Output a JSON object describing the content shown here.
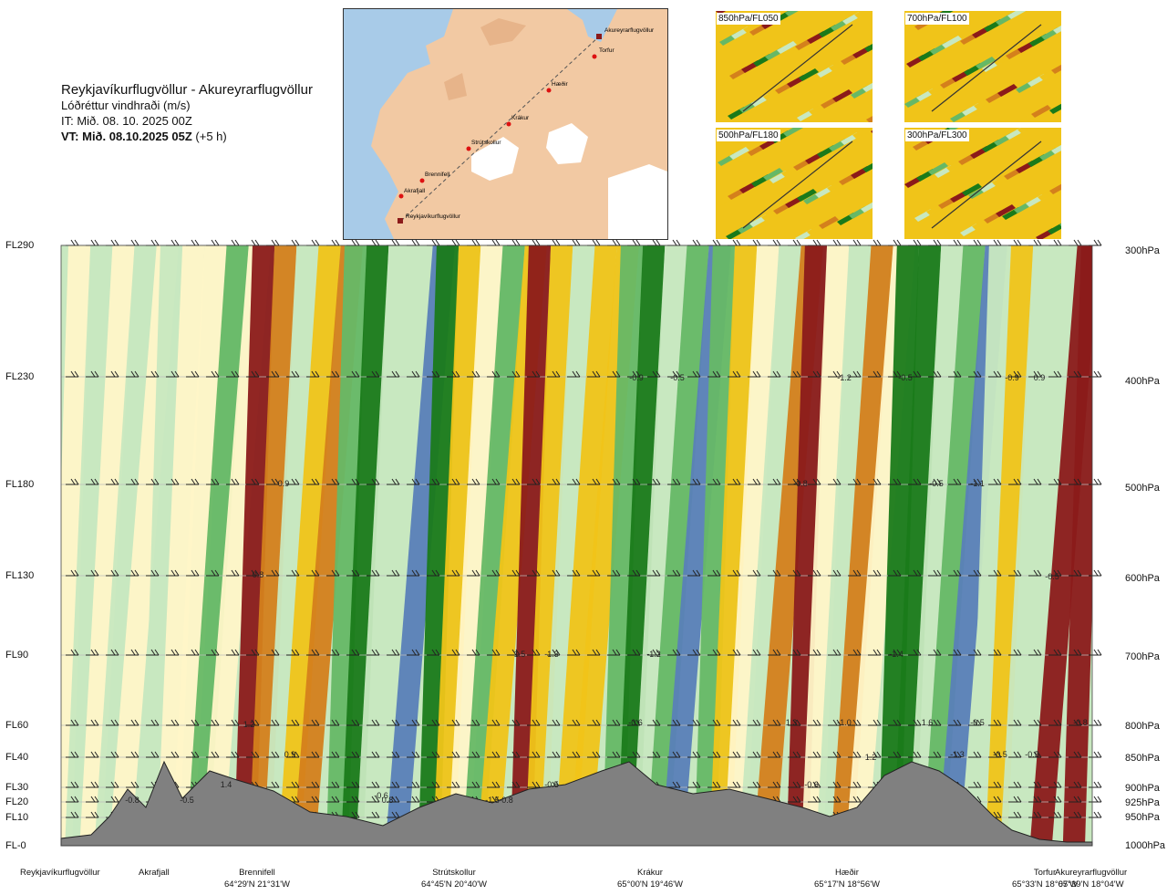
{
  "title": {
    "route": "Reykjavíkurflugvöllur - Akureyrarflugvöllur",
    "subtitle": "Lóðréttur vindhraði (m/s)",
    "issue_time": "IT: Mið. 08. 10. 2025 00Z",
    "valid_time": "VT: Mið. 08.10.2025 05Z",
    "lead": "(+5 h)"
  },
  "map": {
    "waypoints": [
      {
        "name": "Akureyrarflugvöllur",
        "kind": "airport"
      },
      {
        "name": "Torfur",
        "kind": "point"
      },
      {
        "name": "Hæðir",
        "kind": "point"
      },
      {
        "name": "Krákur",
        "kind": "point"
      },
      {
        "name": "Strútskollur",
        "kind": "point"
      },
      {
        "name": "Brennifell",
        "kind": "point"
      },
      {
        "name": "Akrafjall",
        "kind": "point"
      },
      {
        "name": "Reykjavíkurflugvöllur",
        "kind": "airport"
      }
    ],
    "colors": {
      "land": "#f2c9a3",
      "sea": "#a8cbe8",
      "glacier": "#ffffff",
      "route": "#555555",
      "point": "#dd1111",
      "airport": "#8b1a1a"
    }
  },
  "thumbnails": [
    {
      "label": "850hPa/FL050"
    },
    {
      "label": "700hPa/FL100"
    },
    {
      "label": "500hPa/FL180"
    },
    {
      "label": "300hPa/FL300"
    }
  ],
  "levels": [
    {
      "fl": "FL290",
      "hpa": "300hPa"
    },
    {
      "fl": "FL230",
      "hpa": "400hPa"
    },
    {
      "fl": "FL180",
      "hpa": "500hPa"
    },
    {
      "fl": "FL130",
      "hpa": "600hPa"
    },
    {
      "fl": "FL90",
      "hpa": "700hPa"
    },
    {
      "fl": "FL60",
      "hpa": "800hPa"
    },
    {
      "fl": "FL40",
      "hpa": "850hPa"
    },
    {
      "fl": "FL30",
      "hpa": "900hPa"
    },
    {
      "fl": "FL20",
      "hpa": "925hPa"
    },
    {
      "fl": "FL10",
      "hpa": "950hPa"
    },
    {
      "fl": "FL-0",
      "hpa": "1000hPa"
    }
  ],
  "locations": [
    {
      "name": "Reykjavíkurflugvöllur",
      "coord": ""
    },
    {
      "name": "Akrafjall",
      "coord": ""
    },
    {
      "name": "Brennifell",
      "coord": "64°29'N 21°31'W"
    },
    {
      "name": "Strútskollur",
      "coord": "64°45'N 20°40'W"
    },
    {
      "name": "Krákur",
      "coord": "65°00'N 19°46'W"
    },
    {
      "name": "Hæðir",
      "coord": "65°17'N 18°56'W"
    },
    {
      "name": "Torfur",
      "coord": "65°33'N 18°07'W"
    },
    {
      "name": "Akureyrarflugvöllur",
      "coord": "65°39'N 18°04'W"
    }
  ],
  "contour_labels": [
    "-0.8",
    "-0.5",
    "0.8",
    "-0.6",
    "1.4",
    "1.2",
    "0.9",
    "-1.5",
    "-0.8",
    "1.5",
    "-1.3",
    "-0.5",
    "-0.6",
    "-1.2",
    "-0.9",
    "-0.5",
    "1.3",
    "-0.6",
    "-1.0",
    "1.2",
    "-1.4",
    "1.6",
    "-0.5",
    "-0.5",
    "-0.5",
    "-0.8",
    "-0.5",
    "0.9",
    "-0.9",
    "-1.3",
    "-0.5",
    "-1.1",
    "-0.5",
    "-0.8",
    "-1.2",
    "0.8",
    "0.9"
  ],
  "colors": {
    "up_strong": "#8b1a1a",
    "up_medium": "#d4801c",
    "up_weak": "#f0c419",
    "neutral": "#fff5c8",
    "down_weak": "#c8e8c0",
    "down_medium": "#66b866",
    "down_strong": "#1a7a1a",
    "down_extreme": "#5a80b8",
    "terrain": "#808080",
    "grid_line": "#bbbbbb"
  }
}
